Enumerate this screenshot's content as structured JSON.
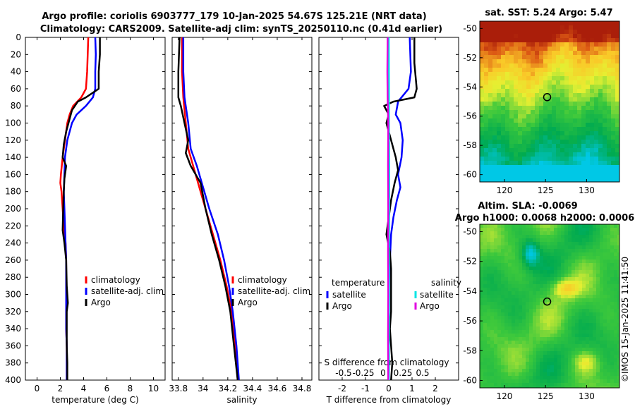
{
  "title_line1": "Argo profile: coriolis 6903777_179 10-Jan-2025 54.67S 125.21E (NRT data)",
  "title_line2": "Climatology: CARS2009. Satellite-adj clim: synTS_20250110.nc (0.41d earlier)",
  "watermark": "©IMOS 15-Jan-2025 11:41:50",
  "colors": {
    "climatology": "#ff0000",
    "satellite": "#0000ff",
    "argo": "#000000",
    "sal_satellite": "#00e5e5",
    "sal_argo": "#e000e0"
  },
  "chart_data": [
    {
      "type": "line",
      "name": "temperature",
      "xlabel": "temperature (deg C)",
      "xlim": [
        -1,
        11
      ],
      "ylim": [
        0,
        400
      ],
      "yreversed": true,
      "xticks": [
        0,
        2,
        4,
        6,
        8,
        10
      ],
      "yticks": [
        0,
        20,
        40,
        60,
        80,
        100,
        120,
        140,
        160,
        180,
        200,
        220,
        240,
        260,
        280,
        300,
        320,
        340,
        360,
        380,
        400
      ],
      "legend": [
        "climatology",
        "satellite-adj. clim",
        "Argo"
      ],
      "series": [
        {
          "name": "climatology",
          "color": "#ff0000",
          "points": [
            [
              4.4,
              0
            ],
            [
              4.35,
              20
            ],
            [
              4.3,
              40
            ],
            [
              4.2,
              60
            ],
            [
              3.8,
              70
            ],
            [
              3.1,
              80
            ],
            [
              2.8,
              90
            ],
            [
              2.6,
              100
            ],
            [
              2.4,
              120
            ],
            [
              2.2,
              140
            ],
            [
              2.05,
              160
            ],
            [
              2.0,
              170
            ],
            [
              2.1,
              180
            ],
            [
              2.2,
              200
            ],
            [
              2.3,
              220
            ],
            [
              2.45,
              240
            ],
            [
              2.5,
              260
            ],
            [
              2.5,
              280
            ],
            [
              2.5,
              300
            ],
            [
              2.5,
              320
            ],
            [
              2.5,
              340
            ],
            [
              2.55,
              360
            ],
            [
              2.55,
              380
            ],
            [
              2.55,
              400
            ]
          ]
        },
        {
          "name": "satellite-adj. clim",
          "color": "#0000ff",
          "points": [
            [
              5.0,
              0
            ],
            [
              5.05,
              20
            ],
            [
              5.0,
              40
            ],
            [
              5.0,
              60
            ],
            [
              4.8,
              70
            ],
            [
              4.2,
              80
            ],
            [
              3.4,
              90
            ],
            [
              3.0,
              100
            ],
            [
              2.6,
              120
            ],
            [
              2.4,
              140
            ],
            [
              2.35,
              160
            ],
            [
              2.3,
              180
            ],
            [
              2.35,
              200
            ],
            [
              2.4,
              220
            ],
            [
              2.45,
              240
            ],
            [
              2.5,
              260
            ],
            [
              2.5,
              280
            ],
            [
              2.5,
              300
            ],
            [
              2.5,
              320
            ],
            [
              2.5,
              340
            ],
            [
              2.55,
              360
            ],
            [
              2.55,
              380
            ],
            [
              2.55,
              400
            ]
          ]
        },
        {
          "name": "Argo",
          "color": "#000000",
          "points": [
            [
              5.4,
              0
            ],
            [
              5.4,
              20
            ],
            [
              5.3,
              40
            ],
            [
              5.3,
              60
            ],
            [
              4.2,
              70
            ],
            [
              3.5,
              75
            ],
            [
              3.0,
              85
            ],
            [
              2.8,
              95
            ],
            [
              2.5,
              110
            ],
            [
              2.3,
              125
            ],
            [
              2.2,
              140
            ],
            [
              2.5,
              150
            ],
            [
              2.35,
              165
            ],
            [
              2.3,
              180
            ],
            [
              2.25,
              200
            ],
            [
              2.2,
              225
            ],
            [
              2.35,
              240
            ],
            [
              2.5,
              260
            ],
            [
              2.55,
              290
            ],
            [
              2.65,
              310
            ],
            [
              2.55,
              320
            ],
            [
              2.55,
              340
            ],
            [
              2.55,
              360
            ],
            [
              2.6,
              380
            ],
            [
              2.6,
              400
            ]
          ]
        }
      ]
    },
    {
      "type": "line",
      "name": "salinity",
      "xlabel": "salinity",
      "xlim": [
        33.75,
        34.88
      ],
      "ylim": [
        0,
        400
      ],
      "yreversed": true,
      "xticks": [
        33.8,
        34,
        34.2,
        34.4,
        34.6,
        34.8
      ],
      "xticklabels": [
        "33.8",
        "34",
        "34.2",
        "34.4",
        "34.6",
        "34.8"
      ],
      "legend": [
        "climatology",
        "satellite-adj. clim",
        "Argo"
      ],
      "series": [
        {
          "name": "climatology",
          "color": "#ff0000",
          "points": [
            [
              33.83,
              0
            ],
            [
              33.83,
              40
            ],
            [
              33.84,
              70
            ],
            [
              33.86,
              100
            ],
            [
              33.88,
              130
            ],
            [
              33.92,
              150
            ],
            [
              33.97,
              175
            ],
            [
              34.02,
              200
            ],
            [
              34.08,
              230
            ],
            [
              34.14,
              260
            ],
            [
              34.19,
              290
            ],
            [
              34.23,
              320
            ],
            [
              34.26,
              360
            ],
            [
              34.28,
              400
            ]
          ]
        },
        {
          "name": "satellite-adj. clim",
          "color": "#0000ff",
          "points": [
            [
              33.84,
              0
            ],
            [
              33.84,
              40
            ],
            [
              33.85,
              70
            ],
            [
              33.88,
              100
            ],
            [
              33.9,
              130
            ],
            [
              33.95,
              150
            ],
            [
              34.0,
              175
            ],
            [
              34.05,
              200
            ],
            [
              34.12,
              230
            ],
            [
              34.17,
              260
            ],
            [
              34.21,
              290
            ],
            [
              34.24,
              320
            ],
            [
              34.27,
              360
            ],
            [
              34.29,
              400
            ]
          ]
        },
        {
          "name": "Argo",
          "color": "#000000",
          "points": [
            [
              33.81,
              0
            ],
            [
              33.8,
              40
            ],
            [
              33.8,
              70
            ],
            [
              33.82,
              80
            ],
            [
              33.85,
              100
            ],
            [
              33.88,
              120
            ],
            [
              33.86,
              135
            ],
            [
              33.9,
              150
            ],
            [
              33.98,
              170
            ],
            [
              34.02,
              200
            ],
            [
              34.07,
              230
            ],
            [
              34.13,
              260
            ],
            [
              34.18,
              290
            ],
            [
              34.22,
              320
            ],
            [
              34.25,
              360
            ],
            [
              34.28,
              400
            ]
          ]
        }
      ]
    },
    {
      "type": "line",
      "name": "difference",
      "xlabel": "T difference from climatology",
      "s_axis_label": "S difference from climatology",
      "xlim": [
        -3,
        3
      ],
      "ylim": [
        0,
        400
      ],
      "yreversed": true,
      "xticks": [
        -2,
        -1,
        0,
        1,
        2
      ],
      "s_ticks": [
        "-0.5",
        "-0.25",
        "0",
        "0.25",
        "0.5"
      ],
      "legend_title_t": "temperature",
      "legend_title_s": "salinity",
      "legend_t": [
        "satellite",
        "Argo"
      ],
      "legend_s": [
        "satellite",
        "Argo"
      ],
      "series": [
        {
          "name": "T satellite",
          "color": "#0000ff",
          "points": [
            [
              0.9,
              0
            ],
            [
              0.95,
              40
            ],
            [
              0.85,
              60
            ],
            [
              0.4,
              75
            ],
            [
              0.3,
              90
            ],
            [
              0.5,
              100
            ],
            [
              0.6,
              120
            ],
            [
              0.55,
              140
            ],
            [
              0.4,
              160
            ],
            [
              0.5,
              175
            ],
            [
              0.35,
              190
            ],
            [
              0.2,
              210
            ],
            [
              0.1,
              230
            ],
            [
              0.05,
              260
            ],
            [
              0.0,
              300
            ],
            [
              0.0,
              340
            ],
            [
              0.0,
              400
            ]
          ]
        },
        {
          "name": "T Argo",
          "color": "#000000",
          "points": [
            [
              1.1,
              0
            ],
            [
              1.1,
              30
            ],
            [
              1.2,
              60
            ],
            [
              1.1,
              70
            ],
            [
              0.2,
              75
            ],
            [
              -0.2,
              80
            ],
            [
              0.0,
              90
            ],
            [
              -0.1,
              100
            ],
            [
              0.1,
              120
            ],
            [
              0.3,
              140
            ],
            [
              0.4,
              155
            ],
            [
              0.25,
              170
            ],
            [
              0.1,
              190
            ],
            [
              0.0,
              210
            ],
            [
              -0.1,
              230
            ],
            [
              0.05,
              250
            ],
            [
              0.1,
              270
            ],
            [
              0.1,
              300
            ],
            [
              0.1,
              320
            ],
            [
              0.05,
              340
            ],
            [
              0.1,
              360
            ],
            [
              0.15,
              380
            ],
            [
              0.1,
              400
            ]
          ]
        },
        {
          "name": "S satellite",
          "color": "#00e5e5",
          "points": [
            [
              0.0,
              0
            ],
            [
              0.01,
              50
            ],
            [
              0.01,
              100
            ],
            [
              0.02,
              150
            ],
            [
              0.02,
              200
            ],
            [
              0.01,
              250
            ],
            [
              0.02,
              300
            ],
            [
              0.01,
              350
            ],
            [
              0.01,
              400
            ]
          ]
        },
        {
          "name": "S Argo",
          "color": "#e000e0",
          "points": [
            [
              -0.05,
              0
            ],
            [
              -0.06,
              40
            ],
            [
              -0.05,
              70
            ],
            [
              -0.02,
              100
            ],
            [
              -0.03,
              150
            ],
            [
              -0.02,
              200
            ],
            [
              -0.03,
              250
            ],
            [
              -0.02,
              300
            ],
            [
              -0.03,
              350
            ],
            [
              -0.02,
              400
            ]
          ]
        }
      ]
    },
    {
      "type": "heatmap",
      "name": "sst-map",
      "title": "sat. SST: 5.24 Argo: 5.47",
      "xlim": [
        117,
        134
      ],
      "ylim": [
        -60.5,
        -49.5
      ],
      "xticks": [
        120,
        125,
        130
      ],
      "yticks": [
        -50,
        -52,
        -54,
        -56,
        -58,
        -60
      ],
      "marker": [
        125.2,
        -54.7
      ]
    },
    {
      "type": "heatmap",
      "name": "sla-map",
      "title1": "Altim. SLA: -0.0069",
      "title2": "Argo h1000: 0.0068 h2000: 0.0006",
      "xlim": [
        117,
        134
      ],
      "ylim": [
        -60.5,
        -49.5
      ],
      "xticks": [
        120,
        125,
        130
      ],
      "yticks": [
        -50,
        -52,
        -54,
        -56,
        -58,
        -60
      ],
      "marker": [
        125.2,
        -54.7
      ]
    }
  ]
}
